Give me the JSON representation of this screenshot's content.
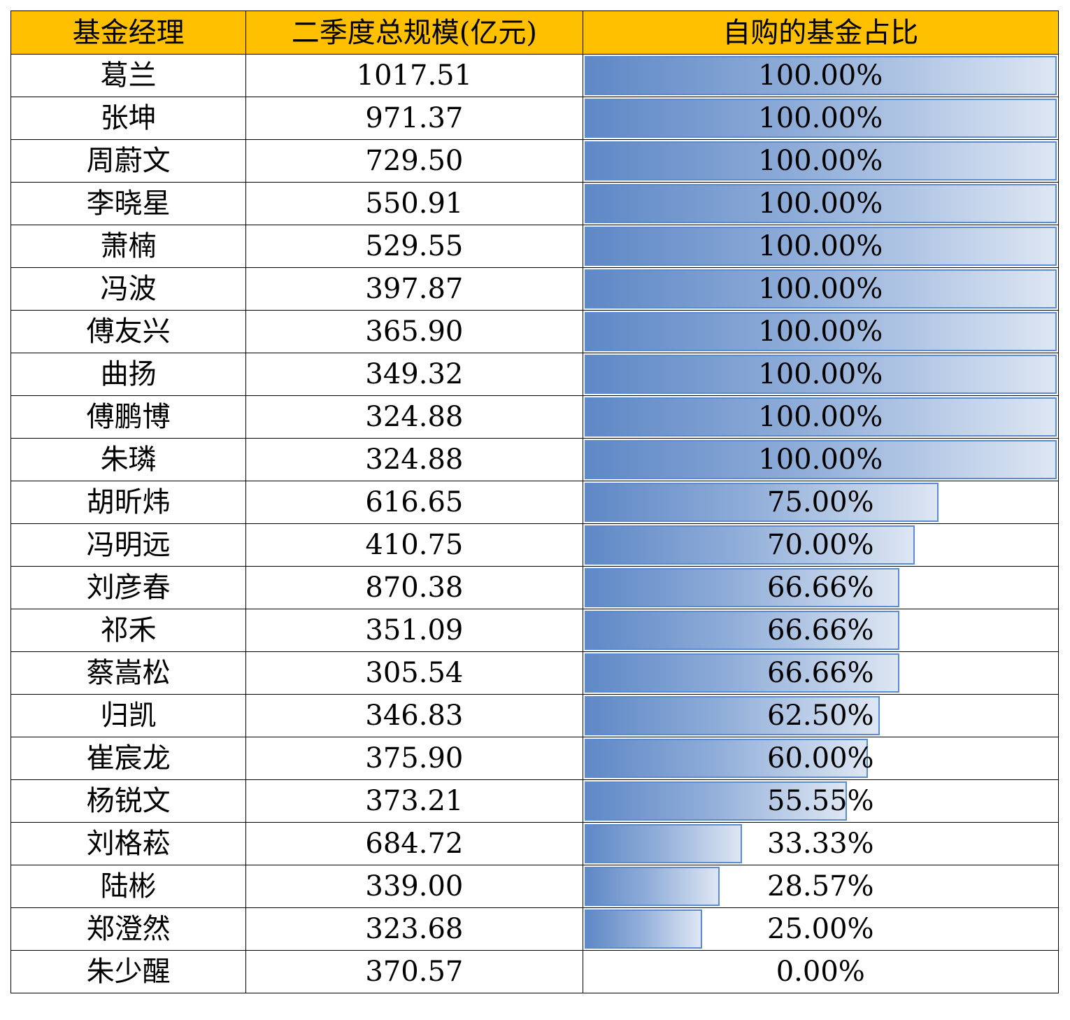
{
  "headers": [
    "基金经理",
    "二季度总规模(亿元)",
    "自购的基金占比"
  ],
  "bar_color": "#5B8BD0",
  "header_color": "#FFC000",
  "chart_data": {
    "type": "table",
    "columns": [
      "基金经理",
      "二季度总规模(亿元)",
      "自购的基金占比"
    ],
    "rows": [
      {
        "name": "葛兰",
        "size": "1017.51",
        "pct": "100.00%",
        "value": 100.0
      },
      {
        "name": "张坤",
        "size": "971.37",
        "pct": "100.00%",
        "value": 100.0
      },
      {
        "name": "周蔚文",
        "size": "729.50",
        "pct": "100.00%",
        "value": 100.0
      },
      {
        "name": "李晓星",
        "size": "550.91",
        "pct": "100.00%",
        "value": 100.0
      },
      {
        "name": "萧楠",
        "size": "529.55",
        "pct": "100.00%",
        "value": 100.0
      },
      {
        "name": "冯波",
        "size": "397.87",
        "pct": "100.00%",
        "value": 100.0
      },
      {
        "name": "傅友兴",
        "size": "365.90",
        "pct": "100.00%",
        "value": 100.0
      },
      {
        "name": "曲扬",
        "size": "349.32",
        "pct": "100.00%",
        "value": 100.0
      },
      {
        "name": "傅鹏博",
        "size": "324.88",
        "pct": "100.00%",
        "value": 100.0
      },
      {
        "name": "朱璘",
        "size": "324.88",
        "pct": "100.00%",
        "value": 100.0
      },
      {
        "name": "胡昕炜",
        "size": "616.65",
        "pct": "75.00%",
        "value": 75.0
      },
      {
        "name": "冯明远",
        "size": "410.75",
        "pct": "70.00%",
        "value": 70.0
      },
      {
        "name": "刘彦春",
        "size": "870.38",
        "pct": "66.66%",
        "value": 66.66
      },
      {
        "name": "祁禾",
        "size": "351.09",
        "pct": "66.66%",
        "value": 66.66
      },
      {
        "name": "蔡嵩松",
        "size": "305.54",
        "pct": "66.66%",
        "value": 66.66
      },
      {
        "name": "归凯",
        "size": "346.83",
        "pct": "62.50%",
        "value": 62.5
      },
      {
        "name": "崔宸龙",
        "size": "375.90",
        "pct": "60.00%",
        "value": 60.0
      },
      {
        "name": "杨锐文",
        "size": "373.21",
        "pct": "55.55%",
        "value": 55.55
      },
      {
        "name": "刘格菘",
        "size": "684.72",
        "pct": "33.33%",
        "value": 33.33
      },
      {
        "name": "陆彬",
        "size": "339.00",
        "pct": "28.57%",
        "value": 28.57
      },
      {
        "name": "郑澄然",
        "size": "323.68",
        "pct": "25.00%",
        "value": 25.0
      },
      {
        "name": "朱少醒",
        "size": "370.57",
        "pct": "0.00%",
        "value": 0.0
      }
    ]
  }
}
